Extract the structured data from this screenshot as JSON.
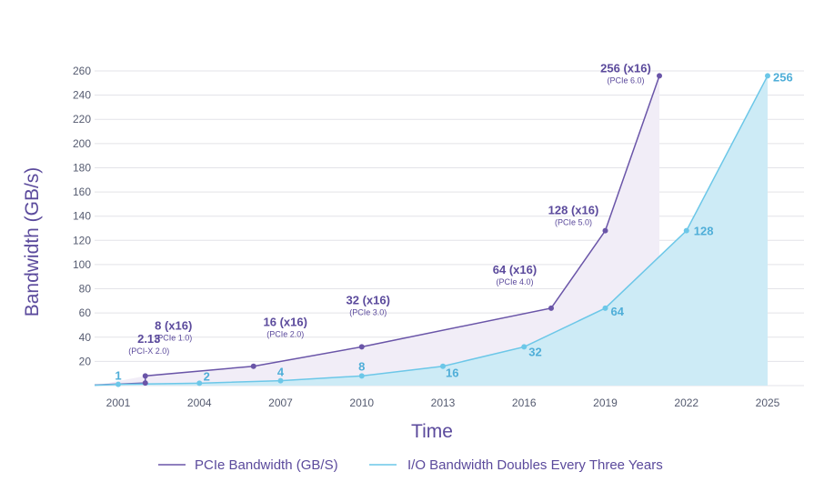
{
  "chart_data": {
    "type": "line",
    "xlabel": "Time",
    "ylabel": "Bandwidth (GB/s)",
    "x_ticks": [
      "2001",
      "2004",
      "2007",
      "2010",
      "2013",
      "2016",
      "2019",
      "2022",
      "2025"
    ],
    "xlim": [
      2000.2,
      2025.5
    ],
    "y_ticks": [
      20,
      40,
      60,
      80,
      100,
      120,
      140,
      160,
      180,
      200,
      220,
      240,
      260
    ],
    "ylim": [
      0,
      260
    ],
    "grid": true,
    "legend_position": "bottom",
    "series": [
      {
        "name": "PCIe Bandwidth (GB/S)",
        "color": "#6a55a8",
        "fill": "#f1edf7",
        "points": [
          {
            "x": 2002,
            "y": 2.13,
            "label": "2.13",
            "sublabel": "(PCI-X 2.0)"
          },
          {
            "x": 2002,
            "y": 8,
            "label": "8 (x16)",
            "sublabel": "(PCIe 1.0)"
          },
          {
            "x": 2006,
            "y": 16,
            "label": "16 (x16)",
            "sublabel": "(PCIe 2.0)"
          },
          {
            "x": 2010,
            "y": 32,
            "label": "32 (x16)",
            "sublabel": "(PCIe 3.0)"
          },
          {
            "x": 2017,
            "y": 64,
            "label": "64 (x16)",
            "sublabel": "(PCIe 4.0)"
          },
          {
            "x": 2019,
            "y": 128,
            "label": "128 (x16)",
            "sublabel": "(PCIe 5.0)"
          },
          {
            "x": 2021,
            "y": 256,
            "label": "256 (x16)",
            "sublabel": "(PCIe 6.0)"
          }
        ]
      },
      {
        "name": "I/O Bandwidth Doubles Every Three Years",
        "color": "#6cc7e8",
        "fill": "#cdebf6",
        "points": [
          {
            "x": 2001,
            "y": 1,
            "label": "1"
          },
          {
            "x": 2004,
            "y": 2,
            "label": "2"
          },
          {
            "x": 2007,
            "y": 4,
            "label": "4"
          },
          {
            "x": 2010,
            "y": 8,
            "label": "8"
          },
          {
            "x": 2013,
            "y": 16,
            "label": "16"
          },
          {
            "x": 2016,
            "y": 32,
            "label": "32"
          },
          {
            "x": 2019,
            "y": 64,
            "label": "64"
          },
          {
            "x": 2022,
            "y": 128,
            "label": "128"
          },
          {
            "x": 2025,
            "y": 256,
            "label": "256"
          }
        ]
      }
    ]
  }
}
